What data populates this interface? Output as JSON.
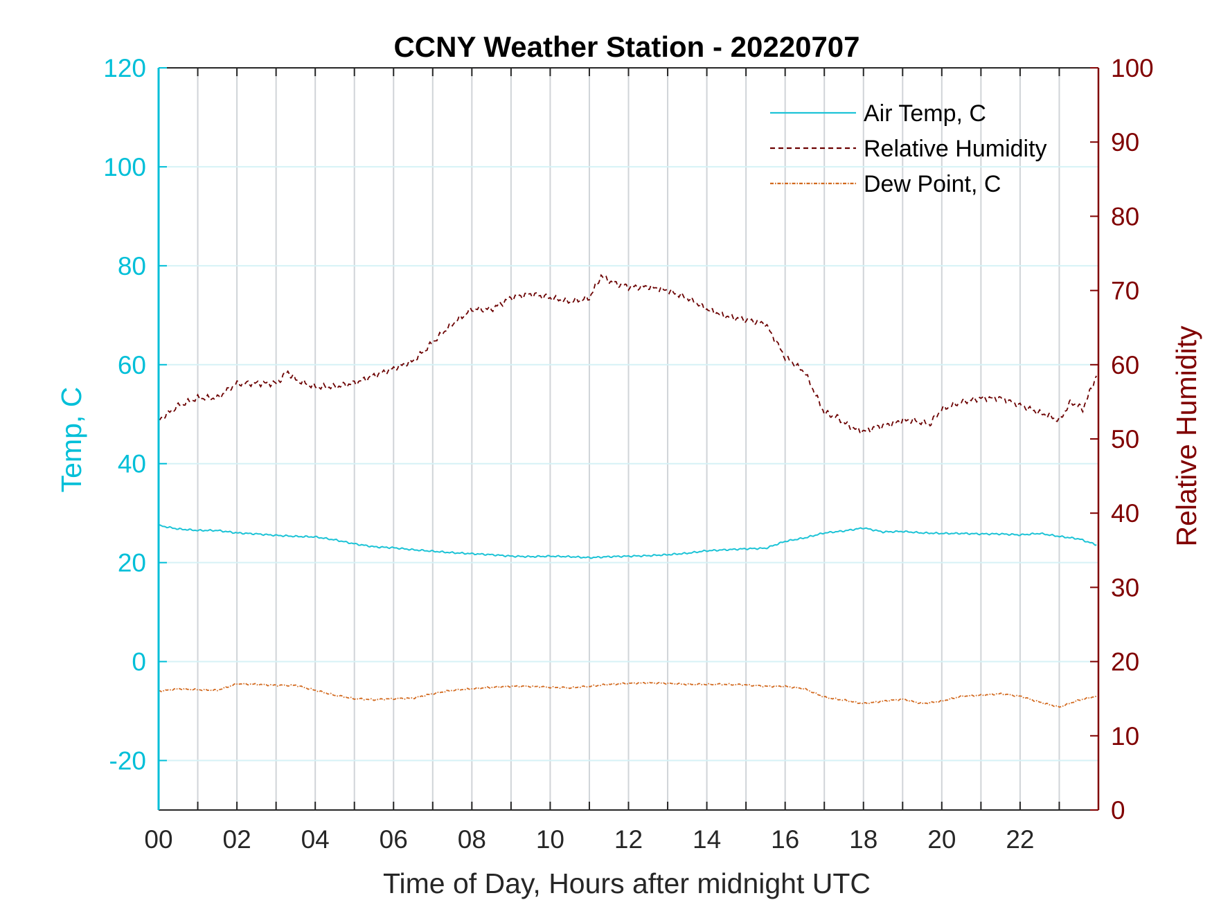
{
  "chart_data": {
    "type": "line",
    "title": "CCNY Weather Station - 20220707",
    "xlabel": "Time of Day, Hours after midnight UTC",
    "ylabel_left": "Temp, C",
    "ylabel_right": "Relative Humidity",
    "xlim": [
      0,
      24
    ],
    "ylim_left": [
      -30,
      120
    ],
    "ylim_right": [
      0,
      100
    ],
    "x_ticks": [
      0,
      2,
      4,
      6,
      8,
      10,
      12,
      14,
      16,
      18,
      20,
      22
    ],
    "x_tick_labels": [
      "00",
      "02",
      "04",
      "06",
      "08",
      "10",
      "12",
      "14",
      "16",
      "18",
      "20",
      "22"
    ],
    "y_left_ticks": [
      -20,
      0,
      20,
      40,
      60,
      80,
      100,
      120
    ],
    "y_left_tick_labels": [
      "-20",
      "0",
      "20",
      "40",
      "60",
      "80",
      "100",
      "120"
    ],
    "y_right_ticks": [
      0,
      10,
      20,
      30,
      40,
      50,
      60,
      70,
      80,
      90,
      100
    ],
    "y_right_tick_labels": [
      "0",
      "10",
      "20",
      "30",
      "40",
      "50",
      "60",
      "70",
      "80",
      "90",
      "100"
    ],
    "grid": true,
    "legend_position": "top-right",
    "colors": {
      "left_axis": "#00BFD8",
      "right_axis": "#800000",
      "air_temp": "#1CC3D6",
      "rh": "#6B0000",
      "dew": "#D2691E",
      "vgrid": "#D0D4D8",
      "hgrid": "#D6F2F6"
    },
    "series": [
      {
        "name": "Air Temp, C",
        "axis": "left",
        "style": "solid",
        "x": [
          0,
          0.5,
          1,
          1.5,
          2,
          2.5,
          3,
          3.5,
          4,
          4.5,
          5,
          5.5,
          6,
          6.5,
          7,
          7.5,
          8,
          8.5,
          9,
          9.5,
          10,
          10.5,
          11,
          11.5,
          12,
          12.5,
          13,
          13.5,
          14,
          14.5,
          15,
          15.5,
          16,
          16.5,
          17,
          17.5,
          18,
          18.5,
          19,
          19.5,
          20,
          20.5,
          21,
          21.5,
          22,
          22.5,
          23,
          23.5,
          23.95
        ],
        "y": [
          27.5,
          26.8,
          26.5,
          26.5,
          26.0,
          25.8,
          25.5,
          25.3,
          25.2,
          24.6,
          23.8,
          23.2,
          23.0,
          22.6,
          22.3,
          22.0,
          21.8,
          21.6,
          21.3,
          21.2,
          21.3,
          21.2,
          21.0,
          21.2,
          21.3,
          21.4,
          21.6,
          21.9,
          22.4,
          22.6,
          22.8,
          22.9,
          24.3,
          25.0,
          26.0,
          26.4,
          27.0,
          26.2,
          26.3,
          26.0,
          25.9,
          25.9,
          25.8,
          25.8,
          25.6,
          25.9,
          25.3,
          24.8,
          23.6
        ]
      },
      {
        "name": "Relative Humidity",
        "axis": "right",
        "style": "dashed",
        "x": [
          0,
          0.5,
          1,
          1.5,
          2,
          2.5,
          3,
          3.3,
          3.5,
          4,
          4.5,
          5,
          5.5,
          6,
          6.5,
          7,
          7.5,
          8,
          8.5,
          9,
          9.5,
          10,
          10.5,
          11,
          11.3,
          11.6,
          12,
          12.5,
          13,
          13.5,
          14,
          14.5,
          15,
          15.5,
          16,
          16.5,
          17,
          17.3,
          17.7,
          18,
          18.3,
          18.7,
          19,
          19.3,
          19.7,
          20,
          20.5,
          21,
          21.5,
          22,
          22.5,
          22.8,
          23,
          23.3,
          23.6,
          23.95
        ],
        "y": [
          52.5,
          54.5,
          55.5,
          55.5,
          57.5,
          57.5,
          57.5,
          59.0,
          58.0,
          57.0,
          57.0,
          57.5,
          58.5,
          59.5,
          60.5,
          63.0,
          65.5,
          67.5,
          67.5,
          69.0,
          69.5,
          69.0,
          68.5,
          69.0,
          72.0,
          71.0,
          70.5,
          70.5,
          70.0,
          69.0,
          67.5,
          66.5,
          66.0,
          65.5,
          61.0,
          59.0,
          53.5,
          53.0,
          51.5,
          51.0,
          51.5,
          52.0,
          52.5,
          52.5,
          52.0,
          54.0,
          55.0,
          55.5,
          55.5,
          54.5,
          53.5,
          53.0,
          52.5,
          55.0,
          54.0,
          58.5
        ]
      },
      {
        "name": "Dew Point, C",
        "axis": "left",
        "style": "dash-dot",
        "x": [
          0,
          0.5,
          1,
          1.5,
          2,
          2.5,
          3,
          3.5,
          4,
          4.5,
          5,
          5.5,
          6,
          6.5,
          7,
          7.5,
          8,
          8.5,
          9,
          9.5,
          10,
          10.5,
          11,
          11.5,
          12,
          12.5,
          13,
          13.5,
          14,
          14.5,
          15,
          15.5,
          16,
          16.5,
          17,
          17.5,
          18,
          18.5,
          19,
          19.5,
          20,
          20.5,
          21,
          21.5,
          22,
          22.5,
          23,
          23.5,
          23.95
        ],
        "y": [
          -6.0,
          -5.5,
          -5.7,
          -5.8,
          -4.5,
          -4.6,
          -4.8,
          -4.8,
          -5.8,
          -6.8,
          -7.5,
          -7.7,
          -7.5,
          -7.4,
          -6.5,
          -5.8,
          -5.5,
          -5.2,
          -5.0,
          -5.0,
          -5.2,
          -5.3,
          -5.0,
          -4.6,
          -4.4,
          -4.3,
          -4.4,
          -4.6,
          -4.6,
          -4.6,
          -4.7,
          -5.0,
          -5.0,
          -5.5,
          -7.2,
          -7.8,
          -8.5,
          -8.0,
          -7.6,
          -8.5,
          -8.0,
          -7.0,
          -6.8,
          -6.5,
          -7.0,
          -8.2,
          -9.2,
          -7.8,
          -7.0
        ]
      }
    ]
  }
}
